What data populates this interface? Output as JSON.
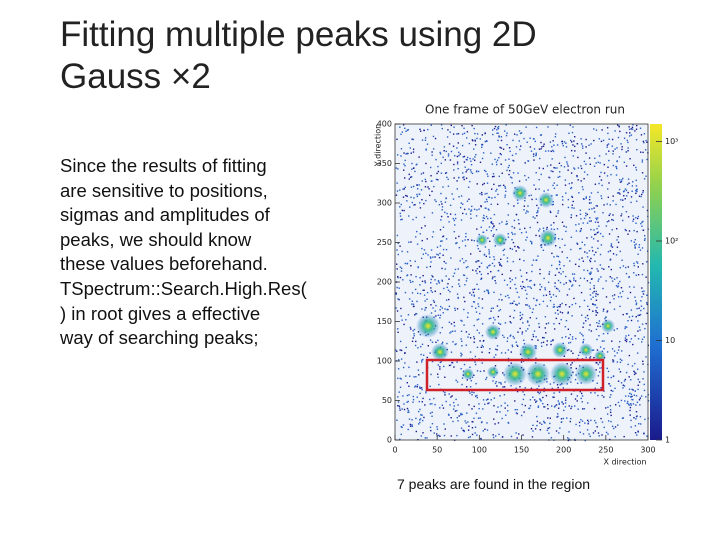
{
  "slide": {
    "title_lines": [
      "Fitting multiple peaks using 2D",
      "Gauss ×2"
    ],
    "body_lines": [
      "Since the results of fitting",
      "are sensitive to positions,",
      "sigmas and amplitudes of",
      "peaks, we should know",
      "these values beforehand.",
      "TSpectrum::Search.High.Res(",
      ") in root  gives a effective",
      "way of searching peaks;"
    ],
    "caption": "7 peaks are found in the region"
  },
  "figure": {
    "title": "One frame of 50GeV electron run",
    "x_label": "X direction",
    "y_label": "Y direction",
    "xlim": [
      0,
      300
    ],
    "xticks": [
      0,
      50,
      100,
      150,
      200,
      250,
      300
    ],
    "ylim": [
      0,
      400
    ],
    "yticks": [
      0,
      50,
      100,
      150,
      200,
      250,
      300,
      350,
      400
    ],
    "zlim": [
      1,
      1500
    ],
    "zlog": true,
    "zticks": [
      1,
      10,
      {
        "value": 100,
        "label": "10²"
      },
      {
        "value": 1000,
        "label": "10³"
      }
    ]
  }
}
